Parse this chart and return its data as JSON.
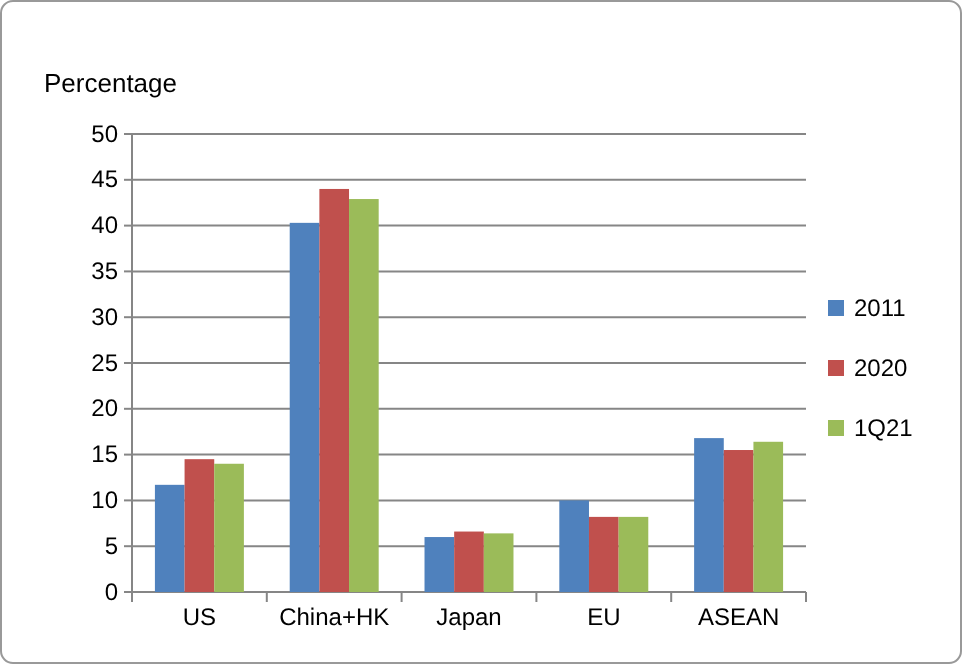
{
  "chart_data": {
    "type": "bar",
    "ylabel": "Percentage",
    "categories": [
      "US",
      "China+HK",
      "Japan",
      "EU",
      "ASEAN"
    ],
    "series": [
      {
        "name": "2011",
        "color": "#4f81bd",
        "values": [
          11.7,
          40.3,
          6.0,
          10.0,
          16.8
        ]
      },
      {
        "name": "2020",
        "color": "#c0504d",
        "values": [
          14.5,
          44.0,
          6.6,
          8.2,
          15.5
        ]
      },
      {
        "name": "1Q21",
        "color": "#9bbb59",
        "values": [
          14.0,
          42.9,
          6.4,
          8.2,
          16.4
        ]
      }
    ],
    "ylim": [
      0,
      50
    ],
    "yticks": [
      0,
      5,
      10,
      15,
      20,
      25,
      30,
      35,
      40,
      45,
      50
    ],
    "grid": "y",
    "legend": "right"
  }
}
